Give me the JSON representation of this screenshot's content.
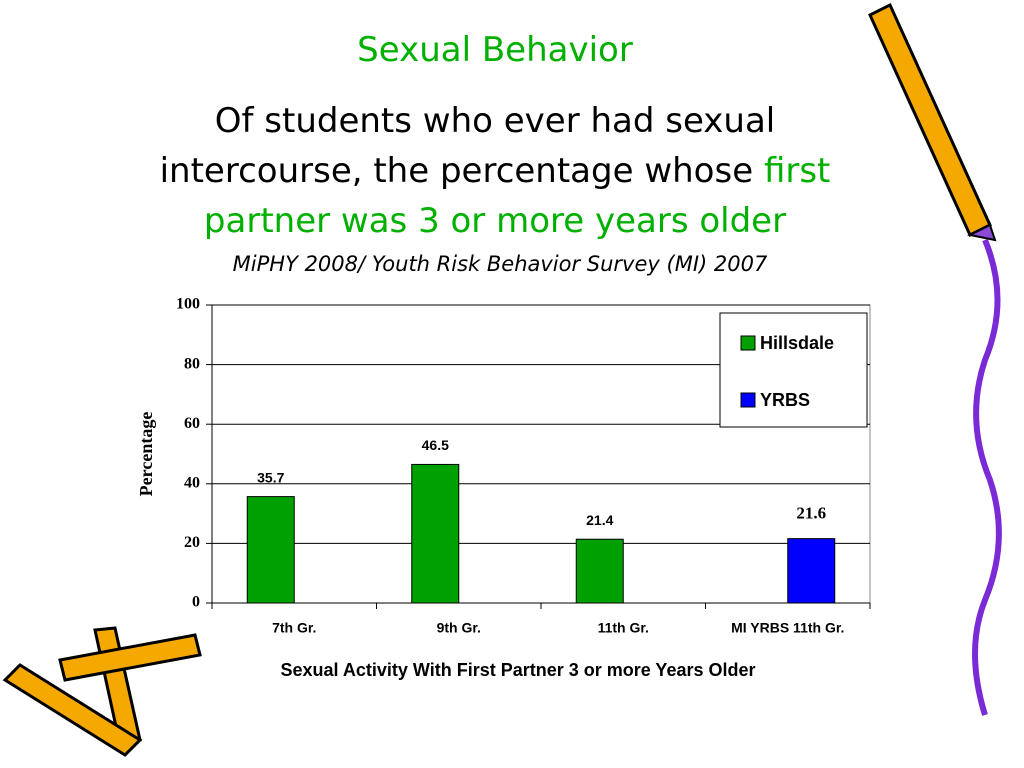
{
  "chart_data": {
    "type": "bar",
    "title": "Sexual Behavior",
    "subtitle": "Of students who ever had sexual intercourse, the percentage whose",
    "subtitle_highlight": "first partner was 3 or more years older",
    "source": "MiPHY 2008/ Youth Risk Behavior Survey (MI) 2007",
    "categories": [
      "7th Gr.",
      "9th Gr.",
      "11th Gr.",
      "MI YRBS 11th Gr."
    ],
    "series": [
      {
        "name": "Hillsdale",
        "color": "#00a000",
        "values": [
          35.7,
          46.5,
          21.4,
          null
        ]
      },
      {
        "name": "YRBS",
        "color": "#0000ff",
        "values": [
          null,
          null,
          null,
          21.6
        ]
      }
    ],
    "y_label": "Percentage",
    "x_label": "Sexual Activity With First Partner 3 or more Years Older",
    "ylim": [
      0,
      100
    ],
    "yticks": [
      0,
      20,
      40,
      60,
      80,
      100
    ],
    "grid": true,
    "legend": "upper right"
  }
}
